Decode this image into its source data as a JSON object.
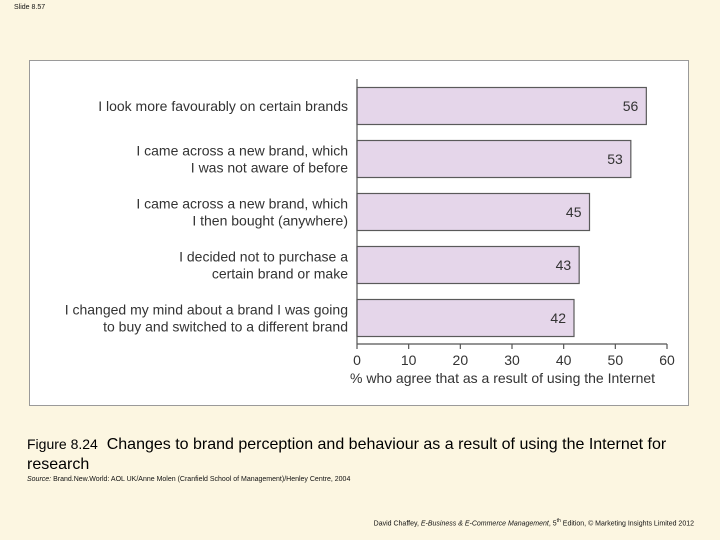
{
  "slide": {
    "label": "Slide 8.57"
  },
  "chart_data": {
    "type": "bar",
    "orientation": "horizontal",
    "categories": [
      [
        "I look more favourably on certain brands"
      ],
      [
        "I came across a new brand, which",
        "I was not aware of before"
      ],
      [
        "I came across a new brand, which",
        "I then bought (anywhere)"
      ],
      [
        "I decided not to purchase a",
        "certain brand or make"
      ],
      [
        "I changed my mind about a brand I was going",
        "to buy and switched to a different brand"
      ]
    ],
    "values": [
      56,
      53,
      45,
      43,
      42
    ],
    "xlabel": "% who agree that as a result of using the Internet",
    "xlim": [
      0,
      60
    ],
    "xticks": [
      0,
      10,
      20,
      30,
      40,
      50,
      60
    ],
    "bar_color": "#e5d6ea",
    "bar_border": "#5a5a5a",
    "grid": false
  },
  "caption": {
    "figure_number": "Figure 8.24",
    "text": "Changes to brand perception and behaviour as a result of using the Internet for research"
  },
  "source": {
    "label": "Source:",
    "text": "Brand.New.World: AOL UK/Anne Molen (Cranfield School of Management)/Henley Centre, 2004"
  },
  "footer": {
    "author": "David Chaffey,",
    "book_title": "E-Business & E-Commerce Management",
    "edition_num": ", 5",
    "edition_sup": "th",
    "rest": " Edition, © Marketing Insights Limited 2012"
  }
}
